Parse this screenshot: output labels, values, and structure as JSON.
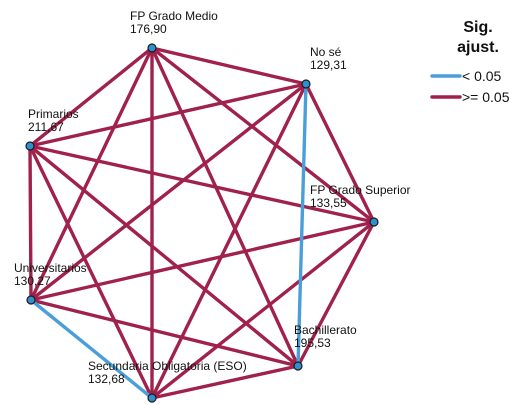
{
  "colors": {
    "significant": "#4a9fd9",
    "not_significant": "#a0224c",
    "node_fill": "#2f8fd1"
  },
  "nodes": [
    {
      "id": "fp_medio",
      "name": "FP Grado Medio",
      "value": "176,90"
    },
    {
      "id": "no_se",
      "name": "No sé",
      "value": "129,31"
    },
    {
      "id": "primarios",
      "name": "Primarios",
      "value": "211,67"
    },
    {
      "id": "fp_superior",
      "name": "FP Grado Superior",
      "value": "133,55"
    },
    {
      "id": "universitarios",
      "name": "Universitarios",
      "value": "130,27"
    },
    {
      "id": "bachillerato",
      "name": "Bachillerato",
      "value": "195,53"
    },
    {
      "id": "eso",
      "name": "Secundaria Obligatoria (ESO)",
      "value": "132,68"
    }
  ],
  "edges": [
    {
      "from": "fp_medio",
      "to": "no_se",
      "sig": "not_significant"
    },
    {
      "from": "fp_medio",
      "to": "primarios",
      "sig": "not_significant"
    },
    {
      "from": "fp_medio",
      "to": "fp_superior",
      "sig": "not_significant"
    },
    {
      "from": "fp_medio",
      "to": "universitarios",
      "sig": "not_significant"
    },
    {
      "from": "fp_medio",
      "to": "bachillerato",
      "sig": "not_significant"
    },
    {
      "from": "fp_medio",
      "to": "eso",
      "sig": "not_significant"
    },
    {
      "from": "no_se",
      "to": "primarios",
      "sig": "not_significant"
    },
    {
      "from": "no_se",
      "to": "fp_superior",
      "sig": "not_significant"
    },
    {
      "from": "no_se",
      "to": "universitarios",
      "sig": "not_significant"
    },
    {
      "from": "no_se",
      "to": "bachillerato",
      "sig": "significant"
    },
    {
      "from": "no_se",
      "to": "eso",
      "sig": "not_significant"
    },
    {
      "from": "primarios",
      "to": "fp_superior",
      "sig": "not_significant"
    },
    {
      "from": "primarios",
      "to": "universitarios",
      "sig": "not_significant"
    },
    {
      "from": "primarios",
      "to": "bachillerato",
      "sig": "not_significant"
    },
    {
      "from": "primarios",
      "to": "eso",
      "sig": "not_significant"
    },
    {
      "from": "fp_superior",
      "to": "universitarios",
      "sig": "not_significant"
    },
    {
      "from": "fp_superior",
      "to": "bachillerato",
      "sig": "not_significant"
    },
    {
      "from": "fp_superior",
      "to": "eso",
      "sig": "not_significant"
    },
    {
      "from": "universitarios",
      "to": "bachillerato",
      "sig": "not_significant"
    },
    {
      "from": "universitarios",
      "to": "eso",
      "sig": "significant"
    },
    {
      "from": "bachillerato",
      "to": "eso",
      "sig": "not_significant"
    }
  ],
  "legend": {
    "title_line1": "Sig.",
    "title_line2": "ajust.",
    "items": [
      {
        "sig": "significant",
        "label": "< 0.05"
      },
      {
        "sig": "not_significant",
        "label": ">= 0.05"
      }
    ]
  }
}
